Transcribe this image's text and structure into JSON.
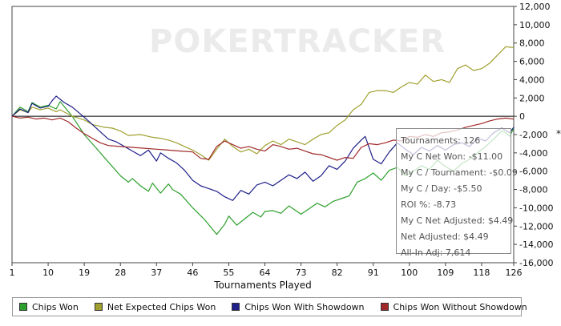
{
  "chart_data": {
    "type": "line",
    "xlabel": "Tournaments Played",
    "ylabel": "",
    "watermark": "POKERTRACKER",
    "xlim": [
      1,
      126
    ],
    "ylim": [
      -16000,
      12000
    ],
    "x_ticks": [
      1,
      10,
      19,
      28,
      37,
      46,
      55,
      64,
      73,
      82,
      91,
      100,
      109,
      118,
      126
    ],
    "y_ticks": [
      12000,
      10000,
      8000,
      6000,
      4000,
      2000,
      0,
      -2000,
      -4000,
      -6000,
      -8000,
      -10000,
      -12000,
      -14000,
      -16000
    ],
    "y_tick_labels": [
      "12,000",
      "10,000",
      "8,000",
      "6,000",
      "4,000",
      "2,000",
      "0",
      "-2,000",
      "-4,000",
      "-6,000",
      "-8,000",
      "-10,000",
      "-12,000",
      "-14,000",
      "-16,000"
    ],
    "series": [
      {
        "name": "Chips Won",
        "color": "#2ca02c",
        "points": [
          [
            1,
            0
          ],
          [
            3,
            1000
          ],
          [
            5,
            500
          ],
          [
            6,
            1500
          ],
          [
            8,
            1000
          ],
          [
            10,
            1200
          ],
          [
            12,
            800
          ],
          [
            13,
            1600
          ],
          [
            16,
            0
          ],
          [
            19,
            -2000
          ],
          [
            22,
            -3500
          ],
          [
            25,
            -5000
          ],
          [
            28,
            -6500
          ],
          [
            30,
            -7200
          ],
          [
            31,
            -6800
          ],
          [
            33,
            -7600
          ],
          [
            35,
            -8200
          ],
          [
            36,
            -7300
          ],
          [
            38,
            -8400
          ],
          [
            40,
            -7400
          ],
          [
            41,
            -8000
          ],
          [
            43,
            -8500
          ],
          [
            46,
            -10000
          ],
          [
            49,
            -11300
          ],
          [
            52,
            -12900
          ],
          [
            54,
            -11800
          ],
          [
            55,
            -10900
          ],
          [
            57,
            -11900
          ],
          [
            59,
            -11200
          ],
          [
            61,
            -10500
          ],
          [
            63,
            -11000
          ],
          [
            64,
            -10400
          ],
          [
            66,
            -10300
          ],
          [
            68,
            -10600
          ],
          [
            70,
            -9800
          ],
          [
            73,
            -10700
          ],
          [
            75,
            -10100
          ],
          [
            77,
            -9500
          ],
          [
            79,
            -9900
          ],
          [
            81,
            -9300
          ],
          [
            83,
            -9000
          ],
          [
            85,
            -8700
          ],
          [
            87,
            -7200
          ],
          [
            89,
            -6800
          ],
          [
            91,
            -6200
          ],
          [
            93,
            -7000
          ],
          [
            95,
            -5900
          ],
          [
            97,
            -5600
          ],
          [
            99,
            -6500
          ],
          [
            101,
            -6000
          ],
          [
            103,
            -5400
          ],
          [
            105,
            -5800
          ],
          [
            107,
            -4800
          ],
          [
            109,
            -5500
          ],
          [
            111,
            -6000
          ],
          [
            113,
            -5200
          ],
          [
            115,
            -4700
          ],
          [
            117,
            -4000
          ],
          [
            119,
            -3300
          ],
          [
            121,
            -2500
          ],
          [
            123,
            -1600
          ],
          [
            124,
            -1800
          ],
          [
            125,
            -2200
          ],
          [
            126,
            -1300
          ]
        ]
      },
      {
        "name": "Net Expected Chips Won",
        "color": "#a0a030",
        "points": [
          [
            1,
            0
          ],
          [
            3,
            700
          ],
          [
            5,
            400
          ],
          [
            6,
            1000
          ],
          [
            8,
            700
          ],
          [
            10,
            900
          ],
          [
            12,
            500
          ],
          [
            13,
            700
          ],
          [
            16,
            0
          ],
          [
            19,
            -400
          ],
          [
            21,
            -900
          ],
          [
            24,
            -1200
          ],
          [
            26,
            -1300
          ],
          [
            28,
            -1600
          ],
          [
            30,
            -2100
          ],
          [
            33,
            -2000
          ],
          [
            36,
            -2300
          ],
          [
            38,
            -2400
          ],
          [
            40,
            -2600
          ],
          [
            42,
            -2900
          ],
          [
            44,
            -3300
          ],
          [
            46,
            -3700
          ],
          [
            48,
            -4200
          ],
          [
            50,
            -4800
          ],
          [
            52,
            -3600
          ],
          [
            54,
            -2500
          ],
          [
            56,
            -3300
          ],
          [
            58,
            -3900
          ],
          [
            60,
            -3600
          ],
          [
            62,
            -4100
          ],
          [
            64,
            -3200
          ],
          [
            66,
            -2700
          ],
          [
            68,
            -3100
          ],
          [
            70,
            -2500
          ],
          [
            72,
            -2800
          ],
          [
            74,
            -3100
          ],
          [
            76,
            -2500
          ],
          [
            78,
            -2000
          ],
          [
            80,
            -1800
          ],
          [
            82,
            -1000
          ],
          [
            84,
            -400
          ],
          [
            86,
            700
          ],
          [
            88,
            1300
          ],
          [
            90,
            2600
          ],
          [
            92,
            2800
          ],
          [
            94,
            2800
          ],
          [
            96,
            2600
          ],
          [
            98,
            3200
          ],
          [
            100,
            3700
          ],
          [
            102,
            3500
          ],
          [
            104,
            4500
          ],
          [
            106,
            3800
          ],
          [
            108,
            4000
          ],
          [
            110,
            3700
          ],
          [
            112,
            5200
          ],
          [
            114,
            5600
          ],
          [
            116,
            5000
          ],
          [
            118,
            5200
          ],
          [
            120,
            5800
          ],
          [
            122,
            6700
          ],
          [
            124,
            7600
          ],
          [
            126,
            7500
          ]
        ]
      },
      {
        "name": "Chips Won With Showdown",
        "color": "#1f1f8a",
        "points": [
          [
            1,
            0
          ],
          [
            3,
            800
          ],
          [
            5,
            400
          ],
          [
            6,
            1400
          ],
          [
            8,
            900
          ],
          [
            10,
            1100
          ],
          [
            11,
            1700
          ],
          [
            12,
            2200
          ],
          [
            14,
            1500
          ],
          [
            16,
            1000
          ],
          [
            19,
            -100
          ],
          [
            21,
            -900
          ],
          [
            23,
            -1700
          ],
          [
            25,
            -2500
          ],
          [
            27,
            -2800
          ],
          [
            29,
            -3300
          ],
          [
            31,
            -3800
          ],
          [
            33,
            -4300
          ],
          [
            35,
            -3700
          ],
          [
            37,
            -4900
          ],
          [
            38,
            -4000
          ],
          [
            40,
            -4600
          ],
          [
            42,
            -5100
          ],
          [
            44,
            -5900
          ],
          [
            46,
            -7000
          ],
          [
            48,
            -7600
          ],
          [
            50,
            -7900
          ],
          [
            52,
            -8200
          ],
          [
            54,
            -8800
          ],
          [
            56,
            -9200
          ],
          [
            58,
            -8100
          ],
          [
            60,
            -8500
          ],
          [
            62,
            -7500
          ],
          [
            64,
            -7200
          ],
          [
            66,
            -7600
          ],
          [
            68,
            -7000
          ],
          [
            70,
            -6400
          ],
          [
            72,
            -6800
          ],
          [
            74,
            -6100
          ],
          [
            76,
            -7100
          ],
          [
            78,
            -6500
          ],
          [
            80,
            -5400
          ],
          [
            82,
            -5800
          ],
          [
            84,
            -4900
          ],
          [
            86,
            -3500
          ],
          [
            88,
            -2600
          ],
          [
            89,
            -2200
          ],
          [
            91,
            -4700
          ],
          [
            93,
            -5200
          ],
          [
            95,
            -3900
          ],
          [
            97,
            -2900
          ],
          [
            99,
            -3600
          ],
          [
            101,
            -4200
          ],
          [
            103,
            -3400
          ],
          [
            105,
            -3800
          ],
          [
            107,
            -3200
          ],
          [
            109,
            -3700
          ],
          [
            111,
            -3100
          ],
          [
            113,
            -2900
          ],
          [
            115,
            -3300
          ],
          [
            117,
            -2400
          ],
          [
            119,
            -2700
          ],
          [
            121,
            -1800
          ],
          [
            123,
            -1300
          ],
          [
            125,
            -1800
          ],
          [
            126,
            -1200
          ]
        ]
      },
      {
        "name": "Chips Won Without Showdown",
        "color": "#a02828",
        "points": [
          [
            1,
            0
          ],
          [
            3,
            -200
          ],
          [
            5,
            -100
          ],
          [
            7,
            -300
          ],
          [
            9,
            -200
          ],
          [
            11,
            -400
          ],
          [
            13,
            -200
          ],
          [
            15,
            -600
          ],
          [
            17,
            -1300
          ],
          [
            19,
            -1900
          ],
          [
            21,
            -2400
          ],
          [
            23,
            -2900
          ],
          [
            25,
            -3200
          ],
          [
            28,
            -3300
          ],
          [
            31,
            -3400
          ],
          [
            34,
            -3500
          ],
          [
            37,
            -3600
          ],
          [
            40,
            -3700
          ],
          [
            43,
            -3800
          ],
          [
            46,
            -3900
          ],
          [
            48,
            -4600
          ],
          [
            50,
            -4700
          ],
          [
            52,
            -3300
          ],
          [
            54,
            -2700
          ],
          [
            56,
            -3100
          ],
          [
            58,
            -3500
          ],
          [
            60,
            -3300
          ],
          [
            62,
            -3600
          ],
          [
            64,
            -3800
          ],
          [
            66,
            -3100
          ],
          [
            68,
            -3300
          ],
          [
            70,
            -3600
          ],
          [
            72,
            -3500
          ],
          [
            74,
            -3800
          ],
          [
            76,
            -4100
          ],
          [
            78,
            -4200
          ],
          [
            80,
            -4500
          ],
          [
            82,
            -4800
          ],
          [
            84,
            -4500
          ],
          [
            86,
            -4600
          ],
          [
            88,
            -3400
          ],
          [
            90,
            -3000
          ],
          [
            92,
            -3100
          ],
          [
            94,
            -2900
          ],
          [
            96,
            -2600
          ],
          [
            98,
            -2700
          ],
          [
            100,
            -2200
          ],
          [
            102,
            -2300
          ],
          [
            104,
            -2000
          ],
          [
            106,
            -2200
          ],
          [
            108,
            -1800
          ],
          [
            110,
            -1700
          ],
          [
            112,
            -1500
          ],
          [
            114,
            -1200
          ],
          [
            116,
            -1000
          ],
          [
            118,
            -800
          ],
          [
            120,
            -500
          ],
          [
            122,
            -300
          ],
          [
            124,
            -200
          ],
          [
            126,
            -300
          ]
        ]
      }
    ]
  },
  "legend": {
    "items": [
      {
        "label": "Chips Won",
        "color": "#2ca02c"
      },
      {
        "label": "Net Expected Chips Won",
        "color": "#a0a030"
      },
      {
        "label": "Chips Won With Showdown",
        "color": "#1f1f8a"
      },
      {
        "label": "Chips Won Without Showdown",
        "color": "#a02828"
      }
    ]
  },
  "tooltip": {
    "lines": [
      "Tournaments: 126",
      "My C Net Won: -$11.00",
      "My C / Tournament: -$0.09",
      "My C / Day: -$5.50",
      "ROI %: -8.73",
      "My C Net Adjusted: $4.49",
      "Net Adjusted: $4.49",
      "All-In Adj: 7,614"
    ]
  },
  "marker_symbol": "*"
}
